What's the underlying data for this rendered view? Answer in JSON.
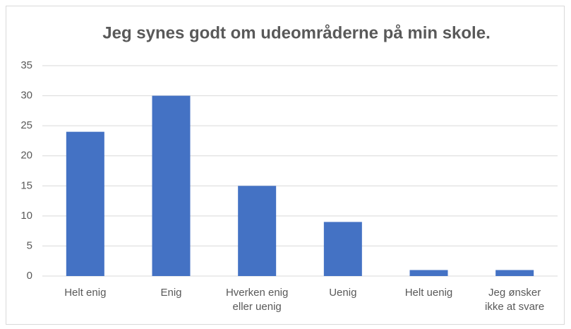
{
  "chart_data": {
    "type": "bar",
    "title": "Jeg synes godt om udeområderne på min skole.",
    "categories": [
      "Helt enig",
      "Enig",
      "Hverken enig eller uenig",
      "Uenig",
      "Helt uenig",
      "Jeg ønsker ikke at svare"
    ],
    "values": [
      24,
      30,
      15,
      9,
      1,
      1
    ],
    "color": "#4472c4",
    "ylim": [
      0,
      35
    ],
    "yticks": [
      0,
      5,
      10,
      15,
      20,
      25,
      30,
      35
    ],
    "grid": true
  }
}
